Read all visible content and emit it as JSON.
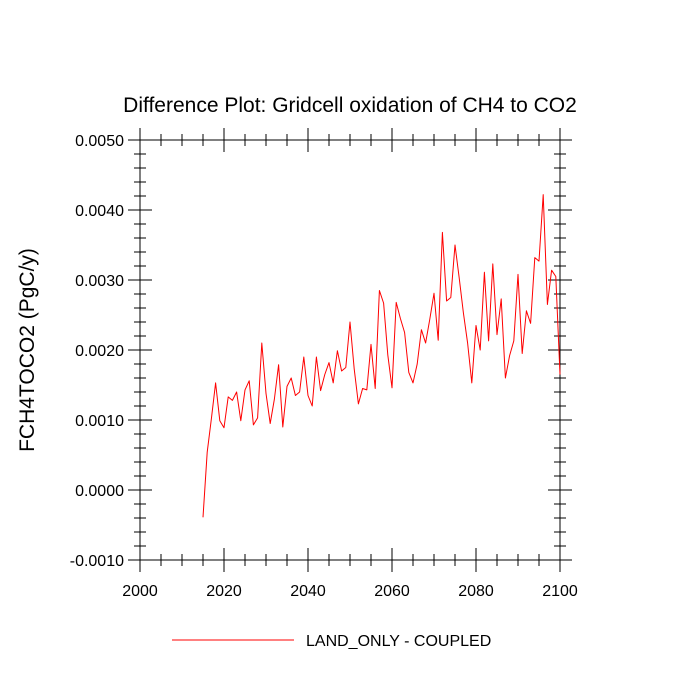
{
  "chart_data": {
    "type": "line",
    "title": "Difference Plot: Gridcell oxidation of CH4 to CO2",
    "xlabel": "",
    "ylabel": "FCH4TOCO2  (PgC/y)",
    "xlim": [
      2000,
      2100
    ],
    "ylim": [
      -0.001,
      0.005
    ],
    "xticks": [
      2000,
      2020,
      2040,
      2060,
      2080,
      2100
    ],
    "xtick_labels": [
      "2000",
      "2020",
      "2040",
      "2060",
      "2080",
      "2100"
    ],
    "yticks": [
      -0.001,
      0.0,
      0.001,
      0.002,
      0.003,
      0.004,
      0.005
    ],
    "ytick_labels": [
      "-0.0010",
      "0.0000",
      "0.0010",
      "0.0020",
      "0.0030",
      "0.0040",
      "0.0050"
    ],
    "grid": false,
    "legend_position": "bottom-center",
    "series": [
      {
        "name": "LAND_ONLY - COUPLED",
        "color": "#ff0000",
        "x": [
          2015,
          2016,
          2017,
          2018,
          2019,
          2020,
          2021,
          2022,
          2023,
          2024,
          2025,
          2026,
          2027,
          2028,
          2029,
          2030,
          2031,
          2032,
          2033,
          2034,
          2035,
          2036,
          2037,
          2038,
          2039,
          2040,
          2041,
          2042,
          2043,
          2044,
          2045,
          2046,
          2047,
          2048,
          2049,
          2050,
          2051,
          2052,
          2053,
          2054,
          2055,
          2056,
          2057,
          2058,
          2059,
          2060,
          2061,
          2062,
          2063,
          2064,
          2065,
          2066,
          2067,
          2068,
          2069,
          2070,
          2071,
          2072,
          2073,
          2074,
          2075,
          2076,
          2077,
          2078,
          2079,
          2080,
          2081,
          2082,
          2083,
          2084,
          2085,
          2086,
          2087,
          2088,
          2089,
          2090,
          2091,
          2092,
          2093,
          2094,
          2095,
          2096,
          2097,
          2098,
          2099,
          2100
        ],
        "y": [
          -0.00039,
          0.00054,
          0.00102,
          0.00153,
          0.00099,
          0.00089,
          0.00133,
          0.00128,
          0.0014,
          0.00099,
          0.00143,
          0.00156,
          0.00093,
          0.00103,
          0.0021,
          0.00138,
          0.00095,
          0.0013,
          0.00179,
          0.0009,
          0.00148,
          0.0016,
          0.00135,
          0.0014,
          0.0019,
          0.00135,
          0.0012,
          0.0019,
          0.00142,
          0.00165,
          0.00182,
          0.00153,
          0.00199,
          0.0017,
          0.00175,
          0.0024,
          0.00173,
          0.00123,
          0.00145,
          0.00143,
          0.00208,
          0.00145,
          0.00285,
          0.00267,
          0.00193,
          0.00146,
          0.00268,
          0.00245,
          0.00225,
          0.00168,
          0.00153,
          0.0018,
          0.00229,
          0.0021,
          0.00244,
          0.00281,
          0.00214,
          0.00368,
          0.0027,
          0.00275,
          0.0035,
          0.00303,
          0.00253,
          0.0021,
          0.00153,
          0.00235,
          0.002,
          0.00311,
          0.00213,
          0.00323,
          0.00222,
          0.00273,
          0.0016,
          0.00192,
          0.00213,
          0.00308,
          0.00195,
          0.00256,
          0.00238,
          0.00332,
          0.00327,
          0.00422,
          0.00265,
          0.00314,
          0.00305,
          0.00165
        ]
      }
    ]
  }
}
